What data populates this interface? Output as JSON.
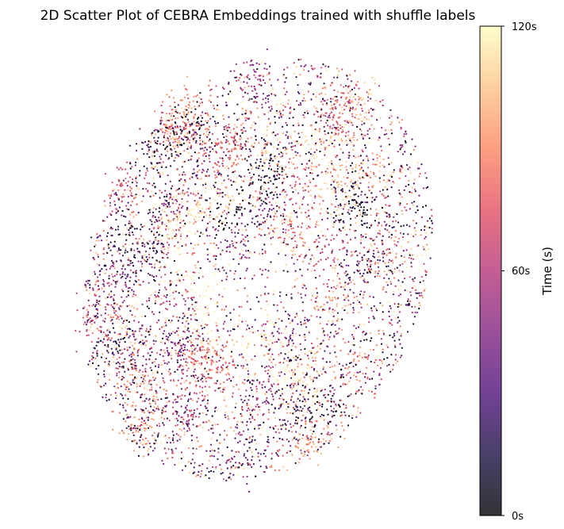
{
  "chart_data": {
    "type": "scatter",
    "title": "2D Scatter Plot of CEBRA Embeddings trained with shuffle labels",
    "xlabel": "",
    "ylabel": "",
    "axes_visible": false,
    "grid": false,
    "color_variable": "time",
    "colormap": "magma",
    "colorbar": {
      "label": "Time (s)",
      "position": "right",
      "range": [
        0,
        120
      ],
      "ticks": [
        {
          "value": 0,
          "label": "0s"
        },
        {
          "value": 60,
          "label": "60s"
        },
        {
          "value": 120,
          "label": "120s"
        }
      ],
      "alpha": 0.8
    },
    "point_cloud": {
      "approx_points": 11000,
      "x_range": [
        -1.0,
        1.0
      ],
      "y_range": [
        -1.0,
        1.0
      ],
      "shape": "tilted ellipse",
      "tilt_deg": 22,
      "time_pattern": "color appears unrelated to position (shuffled labels), with small same-colored clusters"
    },
    "colormap_stops": [
      "#000004",
      "#1c1044",
      "#4f127b",
      "#812581",
      "#b5367a",
      "#e55064",
      "#fb8761",
      "#fec287",
      "#fcfdbf"
    ]
  }
}
